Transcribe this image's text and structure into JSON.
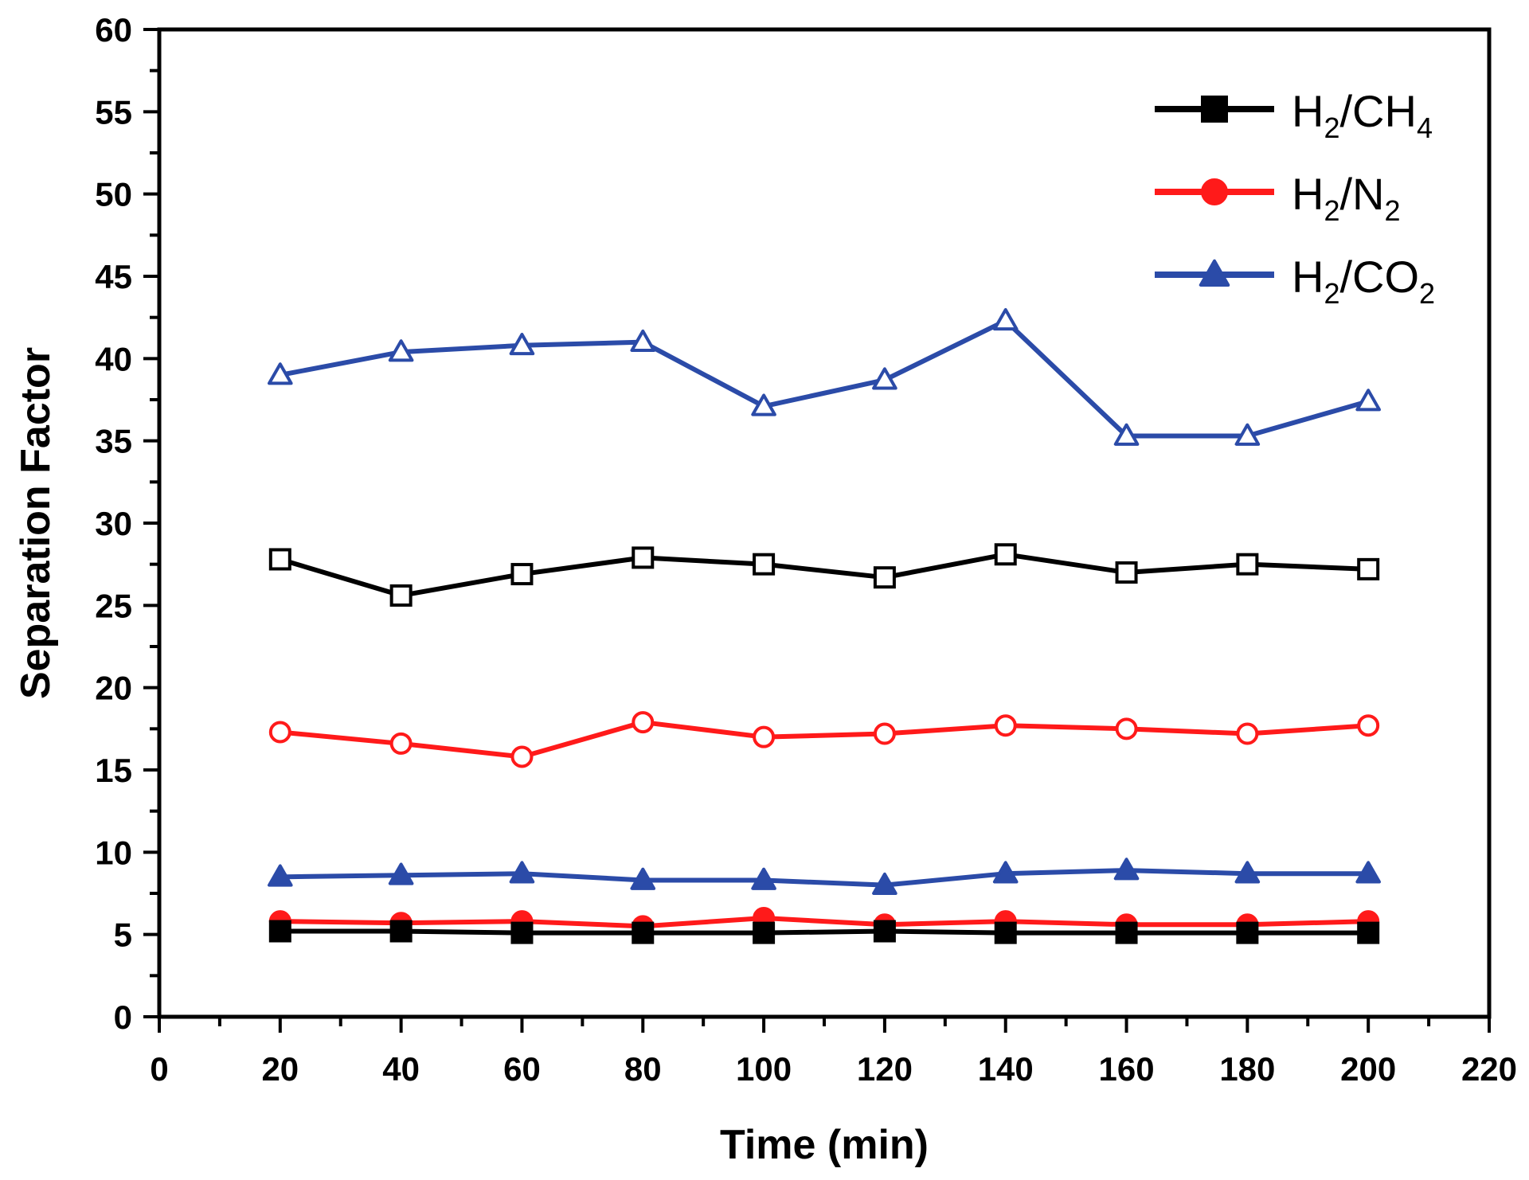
{
  "chart_data": {
    "type": "line",
    "title": "",
    "xlabel": "Time (min)",
    "ylabel": "Separation Factor",
    "xlim": [
      0,
      220
    ],
    "ylim": [
      0,
      60
    ],
    "x_ticks": [
      0,
      20,
      40,
      60,
      80,
      100,
      120,
      140,
      160,
      180,
      200,
      220
    ],
    "y_ticks": [
      0,
      5,
      10,
      15,
      20,
      25,
      30,
      35,
      40,
      45,
      50,
      55,
      60
    ],
    "x": [
      20,
      40,
      60,
      80,
      100,
      120,
      140,
      160,
      180,
      200
    ],
    "legend_position": "top-right",
    "legend": [
      {
        "name": "H2/CH4",
        "main": "H",
        "sub1": "2",
        "mid": "/CH",
        "sub2": "4",
        "marker": "square",
        "color": "#000000"
      },
      {
        "name": "H2/N2",
        "main": "H",
        "sub1": "2",
        "mid": "/N",
        "sub2": "2",
        "marker": "circle",
        "color": "#ff1a1a"
      },
      {
        "name": "H2/CO2",
        "main": "H",
        "sub1": "2",
        "mid": "/CO",
        "sub2": "2",
        "marker": "triangle",
        "color": "#2b4ba8"
      }
    ],
    "series": [
      {
        "name": "H2/CH4 (open)",
        "color": "#000000",
        "marker": "square",
        "filled": false,
        "values": [
          27.8,
          25.6,
          26.9,
          27.9,
          27.5,
          26.7,
          28.1,
          27.0,
          27.5,
          27.2
        ]
      },
      {
        "name": "H2/N2 (open)",
        "color": "#ff1a1a",
        "marker": "circle",
        "filled": false,
        "values": [
          17.3,
          16.6,
          15.8,
          17.9,
          17.0,
          17.2,
          17.7,
          17.5,
          17.2,
          17.7
        ]
      },
      {
        "name": "H2/CO2 (open)",
        "color": "#2b4ba8",
        "marker": "triangle",
        "filled": false,
        "values": [
          39.0,
          40.4,
          40.8,
          41.0,
          37.1,
          38.7,
          42.3,
          35.3,
          35.3,
          37.4
        ]
      },
      {
        "name": "H2/CO2",
        "color": "#2b4ba8",
        "marker": "triangle",
        "filled": true,
        "values": [
          8.5,
          8.6,
          8.7,
          8.3,
          8.3,
          8.0,
          8.7,
          8.9,
          8.7,
          8.7
        ]
      },
      {
        "name": "H2/N2",
        "color": "#ff1a1a",
        "marker": "circle",
        "filled": true,
        "values": [
          5.8,
          5.7,
          5.8,
          5.5,
          6.0,
          5.6,
          5.8,
          5.6,
          5.6,
          5.8
        ]
      },
      {
        "name": "H2/CH4",
        "color": "#000000",
        "marker": "square",
        "filled": true,
        "values": [
          5.2,
          5.2,
          5.1,
          5.1,
          5.1,
          5.2,
          5.1,
          5.1,
          5.1,
          5.1
        ]
      }
    ]
  }
}
